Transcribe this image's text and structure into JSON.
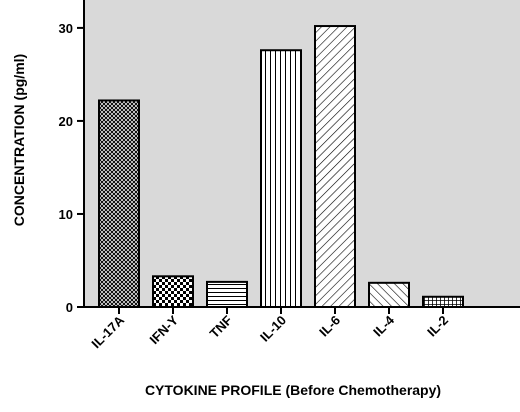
{
  "chart_data": {
    "type": "bar",
    "title": "",
    "xlabel": "CYTOKINE PROFILE (Before Chemotherapy)",
    "ylabel": "CONCENTRATION (pg/ml)",
    "categories": [
      "IL-17A",
      "IFN-Y",
      "TNF",
      "IL-10",
      "IL-6",
      "IL-4",
      "IL-2"
    ],
    "values": [
      22.2,
      3.3,
      2.7,
      27.6,
      30.2,
      2.6,
      1.1
    ],
    "patterns": [
      "crosshatch-dense",
      "checker",
      "horizontal",
      "vertical",
      "diagonal",
      "diagonal-wide",
      "grid"
    ],
    "ylim": [
      0,
      33
    ],
    "yticks": [
      0,
      10,
      20,
      30
    ],
    "plot_background": "#d9d9d9",
    "bar_fill": "#ffffff",
    "bar_stroke": "#000000",
    "grid": false,
    "legend": "none"
  }
}
